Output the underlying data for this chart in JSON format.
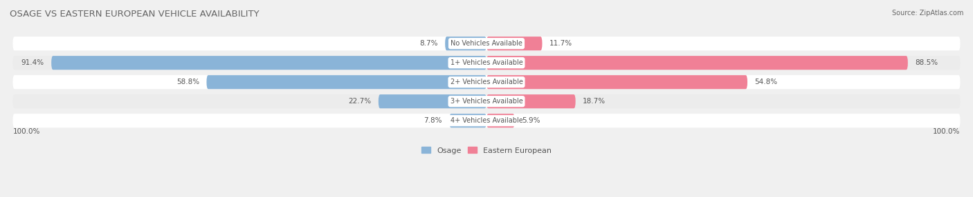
{
  "title": "OSAGE VS EASTERN EUROPEAN VEHICLE AVAILABILITY",
  "source": "Source: ZipAtlas.com",
  "categories": [
    "No Vehicles Available",
    "1+ Vehicles Available",
    "2+ Vehicles Available",
    "3+ Vehicles Available",
    "4+ Vehicles Available"
  ],
  "osage_values": [
    8.7,
    91.4,
    58.8,
    22.7,
    7.8
  ],
  "eastern_values": [
    11.7,
    88.5,
    54.8,
    18.7,
    5.9
  ],
  "osage_color": "#8ab4d8",
  "eastern_color": "#f08096",
  "bg_color": "#f0f0f0",
  "row_bg_even": "#e8e8e8",
  "row_bg_odd": "#f5f5f5",
  "title_color": "#666666",
  "value_color": "#555555",
  "max_value": 100.0,
  "figsize": [
    14.06,
    2.86
  ],
  "dpi": 100
}
